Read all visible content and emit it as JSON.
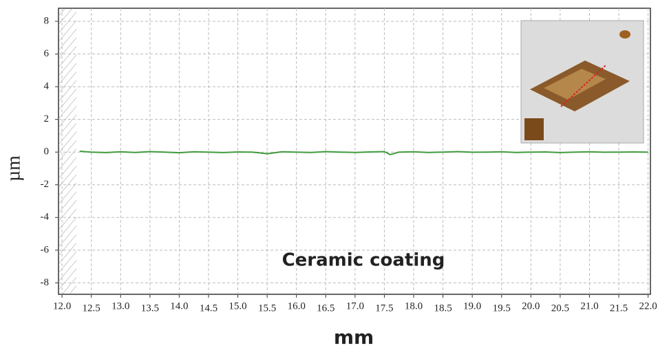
{
  "chart_data": {
    "type": "line",
    "annotation": "Ceramic coating",
    "xlabel": "mm",
    "ylabel": "µm",
    "x": [
      12.3,
      12.5,
      12.75,
      13.0,
      13.25,
      13.5,
      13.75,
      14.0,
      14.25,
      14.5,
      14.75,
      15.0,
      15.25,
      15.5,
      15.75,
      16.0,
      16.25,
      16.5,
      16.75,
      17.0,
      17.25,
      17.5,
      17.6,
      17.75,
      18.0,
      18.25,
      18.5,
      18.75,
      19.0,
      19.25,
      19.5,
      19.75,
      20.0,
      20.25,
      20.5,
      20.75,
      21.0,
      21.25,
      21.5,
      21.75,
      22.0
    ],
    "series": [
      {
        "color": "#3f9a3a",
        "values": [
          0.05,
          0.0,
          -0.03,
          0.02,
          -0.02,
          0.03,
          0.0,
          -0.04,
          0.02,
          0.0,
          -0.03,
          0.01,
          0.0,
          -0.1,
          0.02,
          0.0,
          -0.02,
          0.03,
          0.0,
          -0.02,
          0.01,
          0.03,
          -0.15,
          0.0,
          0.02,
          -0.02,
          0.0,
          0.03,
          -0.01,
          0.0,
          0.02,
          -0.02,
          0.0,
          0.01,
          -0.03,
          0.0,
          0.02,
          -0.01,
          0.0,
          0.01,
          0.0
        ]
      }
    ],
    "xlim": [
      11.94,
      22.04
    ],
    "ylim": [
      -8.7,
      8.8
    ],
    "xticks": [
      {
        "value": 12,
        "label": "12.0"
      },
      12.5,
      {
        "value": 13,
        "label": "13.0"
      },
      13.5,
      {
        "value": 14,
        "label": "14.0"
      },
      14.5,
      {
        "value": 15,
        "label": "15.0"
      },
      15.5,
      {
        "value": 16,
        "label": "16.0"
      },
      16.5,
      {
        "value": 17,
        "label": "17.0"
      },
      17.5,
      {
        "value": 18,
        "label": "18.0"
      },
      18.5,
      {
        "value": 19,
        "label": "19.0"
      },
      19.5,
      {
        "value": 20,
        "label": "20.0"
      },
      20.5,
      {
        "value": 21,
        "label": "21.0"
      },
      21.5,
      {
        "value": 22,
        "label": "22.0"
      }
    ],
    "yticks": [
      -8,
      -6,
      -4,
      -2,
      0,
      2,
      4,
      6,
      8
    ],
    "grid": true
  }
}
